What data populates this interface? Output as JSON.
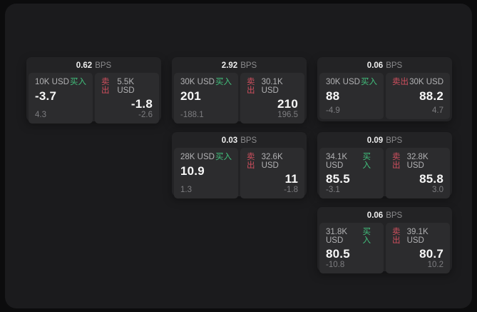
{
  "labels": {
    "bps_unit": "BPS",
    "buy": "买入",
    "sell": "卖出"
  },
  "colors": {
    "page_bg": "#0c0c0d",
    "surface_bg": "#1b1b1d",
    "card_bg": "#232325",
    "tile_bg": "#2c2c2e",
    "buy_accent": "#42c17d",
    "sell_accent": "#cf4f5e"
  },
  "cards": [
    {
      "bps": "0.62",
      "buy": {
        "size": "10K USD",
        "price": "-3.7",
        "sub": "4.3"
      },
      "sell": {
        "size": "5.5K USD",
        "price": "-1.8",
        "sub": "-2.6"
      }
    },
    {
      "bps": "2.92",
      "buy": {
        "size": "30K USD",
        "price": "201",
        "sub": "-188.1"
      },
      "sell": {
        "size": "30.1K USD",
        "price": "210",
        "sub": "196.5"
      }
    },
    {
      "bps": "0.06",
      "buy": {
        "size": "30K USD",
        "price": "88",
        "sub": "-4.9"
      },
      "sell": {
        "size": "30K USD",
        "price": "88.2",
        "sub": "4.7"
      }
    },
    {
      "bps": "0.03",
      "buy": {
        "size": "28K USD",
        "price": "10.9",
        "sub": "1.3"
      },
      "sell": {
        "size": "32.6K USD",
        "price": "11",
        "sub": "-1.8"
      }
    },
    {
      "bps": "0.09",
      "buy": {
        "size": "34.1K USD",
        "price": "85.5",
        "sub": "-3.1"
      },
      "sell": {
        "size": "32.8K USD",
        "price": "85.8",
        "sub": "3.0"
      }
    },
    {
      "bps": "0.06",
      "buy": {
        "size": "31.8K USD",
        "price": "80.5",
        "sub": "-10.8"
      },
      "sell": {
        "size": "39.1K USD",
        "price": "80.7",
        "sub": "10.2"
      }
    }
  ]
}
